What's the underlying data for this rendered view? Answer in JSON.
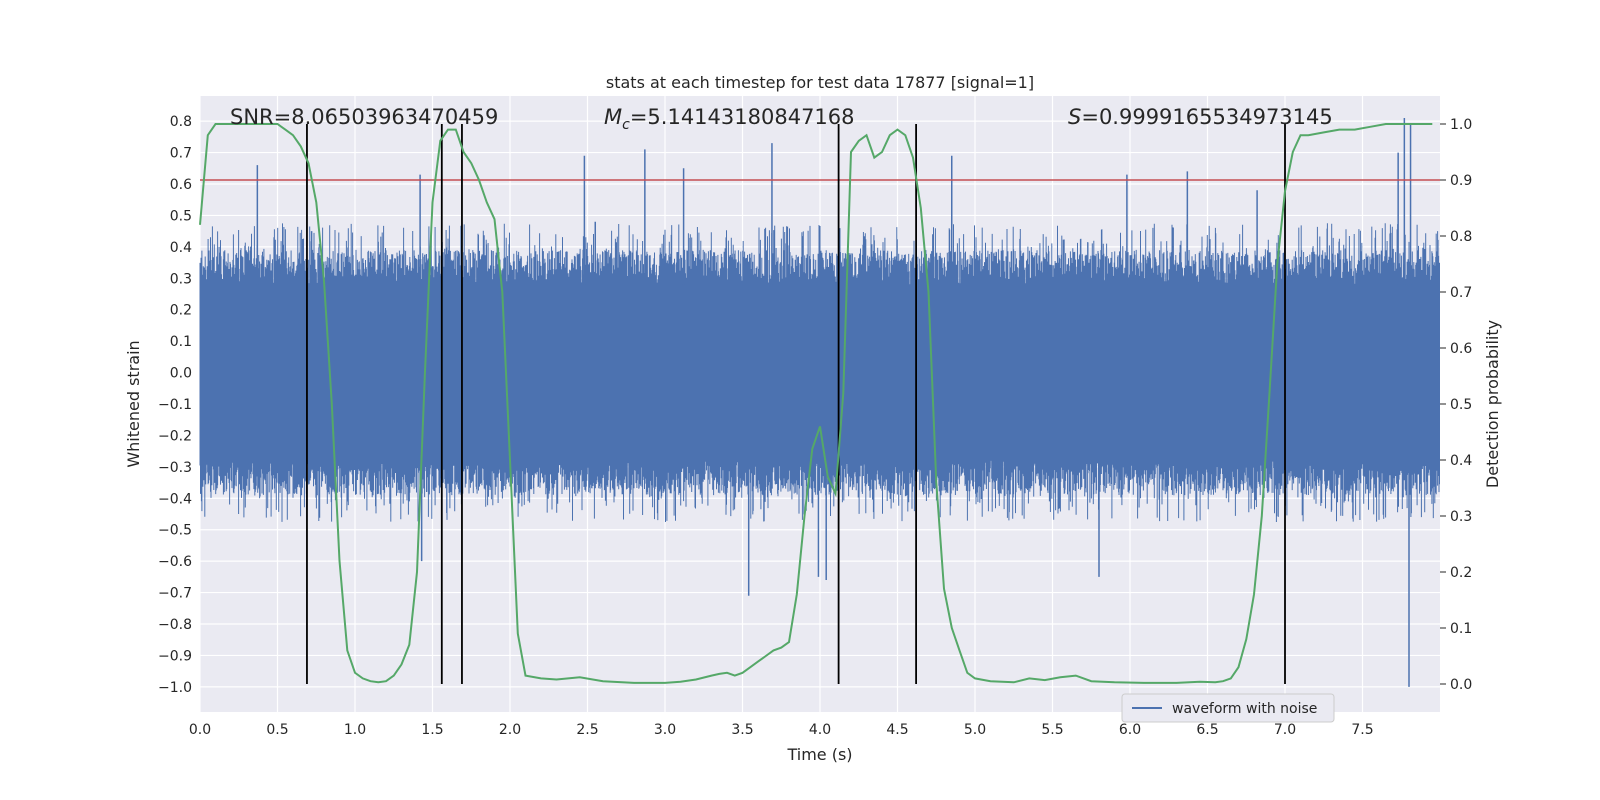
{
  "chart_data": {
    "type": "line",
    "title": "stats at each timestep for test data 17877 [signal=1]",
    "xlabel": "Time (s)",
    "ylabel": "Whitened strain",
    "y2label": "Detection probability",
    "xlim": [
      0.0,
      8.0
    ],
    "ylim": [
      -1.08,
      0.88
    ],
    "y2lim": [
      -0.05,
      1.05
    ],
    "x_ticks": [
      0.0,
      0.5,
      1.0,
      1.5,
      2.0,
      2.5,
      3.0,
      3.5,
      4.0,
      4.5,
      5.0,
      5.5,
      6.0,
      6.5,
      7.0,
      7.5
    ],
    "y_ticks": [
      0.8,
      0.7,
      0.6,
      0.5,
      0.4,
      0.3,
      0.2,
      0.1,
      0.0,
      -0.1,
      -0.2,
      -0.3,
      -0.4,
      -0.5,
      -0.6,
      -0.7,
      -0.8,
      -0.9,
      -1.0
    ],
    "y2_ticks": [
      1.0,
      0.9,
      0.8,
      0.7,
      0.6,
      0.5,
      0.4,
      0.3,
      0.2,
      0.1,
      0.0
    ],
    "annotations": {
      "snr": "SNR=8.06503963470459",
      "mc_symbol": "M",
      "mc_sub": "c",
      "mc_value": "=5.14143180847168",
      "s_symbol": "S",
      "s_value": "=0.9999165534973145"
    },
    "legend": {
      "label": "waveform with noise",
      "position": "lower-right"
    },
    "threshold_prob": 0.9,
    "threshold_color": "#c44e52",
    "waveform_color": "#4c72b0",
    "prob_color": "#55a868",
    "vline_color": "#000000",
    "vlines_x": [
      0.69,
      1.56,
      1.69,
      4.12,
      4.62,
      7.0
    ],
    "waveform": {
      "description_units": "approximate envelope of noisy strain",
      "core_half_width": 0.28,
      "typical_peak": 0.45,
      "spikes": [
        {
          "x": 0.37,
          "y": 0.66
        },
        {
          "x": 1.42,
          "y": 0.63
        },
        {
          "x": 1.43,
          "y": -0.6
        },
        {
          "x": 0.72,
          "y": 0.45
        },
        {
          "x": 2.48,
          "y": 0.69
        },
        {
          "x": 2.55,
          "y": 0.48
        },
        {
          "x": 2.87,
          "y": 0.71
        },
        {
          "x": 3.12,
          "y": 0.65
        },
        {
          "x": 3.69,
          "y": 0.73
        },
        {
          "x": 3.54,
          "y": -0.71
        },
        {
          "x": 3.99,
          "y": -0.65
        },
        {
          "x": 4.04,
          "y": -0.66
        },
        {
          "x": 4.85,
          "y": 0.69
        },
        {
          "x": 5.8,
          "y": -0.65
        },
        {
          "x": 5.98,
          "y": 0.63
        },
        {
          "x": 6.37,
          "y": 0.64
        },
        {
          "x": 7.77,
          "y": 0.81
        },
        {
          "x": 7.81,
          "y": 0.79
        },
        {
          "x": 7.8,
          "y": -1.0
        },
        {
          "x": 7.73,
          "y": 0.7
        },
        {
          "x": 6.82,
          "y": 0.58
        }
      ]
    },
    "detection_probability": {
      "x": [
        0.0,
        0.05,
        0.1,
        0.2,
        0.3,
        0.4,
        0.5,
        0.55,
        0.6,
        0.65,
        0.7,
        0.75,
        0.8,
        0.85,
        0.9,
        0.95,
        1.0,
        1.05,
        1.1,
        1.15,
        1.2,
        1.25,
        1.3,
        1.35,
        1.4,
        1.45,
        1.5,
        1.55,
        1.6,
        1.65,
        1.7,
        1.75,
        1.8,
        1.85,
        1.9,
        1.95,
        2.0,
        2.05,
        2.1,
        2.2,
        2.3,
        2.45,
        2.6,
        2.8,
        3.0,
        3.1,
        3.2,
        3.3,
        3.35,
        3.4,
        3.45,
        3.5,
        3.55,
        3.6,
        3.65,
        3.7,
        3.75,
        3.8,
        3.85,
        3.9,
        3.95,
        4.0,
        4.05,
        4.1,
        4.15,
        4.2,
        4.25,
        4.3,
        4.35,
        4.4,
        4.45,
        4.5,
        4.55,
        4.6,
        4.65,
        4.7,
        4.75,
        4.8,
        4.85,
        4.9,
        4.95,
        5.0,
        5.1,
        5.25,
        5.35,
        5.45,
        5.55,
        5.65,
        5.75,
        5.9,
        6.1,
        6.3,
        6.45,
        6.55,
        6.6,
        6.65,
        6.7,
        6.75,
        6.8,
        6.85,
        6.9,
        6.95,
        7.0,
        7.05,
        7.1,
        7.15,
        7.25,
        7.35,
        7.45,
        7.55,
        7.65,
        7.75,
        7.85,
        7.95
      ],
      "y": [
        0.82,
        0.98,
        1.0,
        1.0,
        1.0,
        1.0,
        1.0,
        0.99,
        0.98,
        0.96,
        0.93,
        0.86,
        0.72,
        0.5,
        0.22,
        0.06,
        0.02,
        0.01,
        0.005,
        0.003,
        0.005,
        0.015,
        0.035,
        0.07,
        0.2,
        0.55,
        0.86,
        0.97,
        0.99,
        0.99,
        0.95,
        0.93,
        0.9,
        0.86,
        0.83,
        0.7,
        0.4,
        0.09,
        0.015,
        0.01,
        0.008,
        0.012,
        0.005,
        0.002,
        0.002,
        0.004,
        0.008,
        0.015,
        0.018,
        0.02,
        0.015,
        0.02,
        0.03,
        0.04,
        0.05,
        0.06,
        0.065,
        0.075,
        0.16,
        0.3,
        0.42,
        0.46,
        0.37,
        0.34,
        0.52,
        0.95,
        0.97,
        0.98,
        0.94,
        0.95,
        0.98,
        0.99,
        0.98,
        0.94,
        0.85,
        0.7,
        0.36,
        0.17,
        0.1,
        0.06,
        0.02,
        0.01,
        0.005,
        0.003,
        0.01,
        0.007,
        0.012,
        0.015,
        0.005,
        0.003,
        0.002,
        0.002,
        0.004,
        0.003,
        0.005,
        0.01,
        0.03,
        0.08,
        0.16,
        0.3,
        0.52,
        0.75,
        0.88,
        0.95,
        0.98,
        0.98,
        0.985,
        0.99,
        0.99,
        0.995,
        1.0,
        1.0,
        1.0,
        1.0
      ]
    }
  }
}
